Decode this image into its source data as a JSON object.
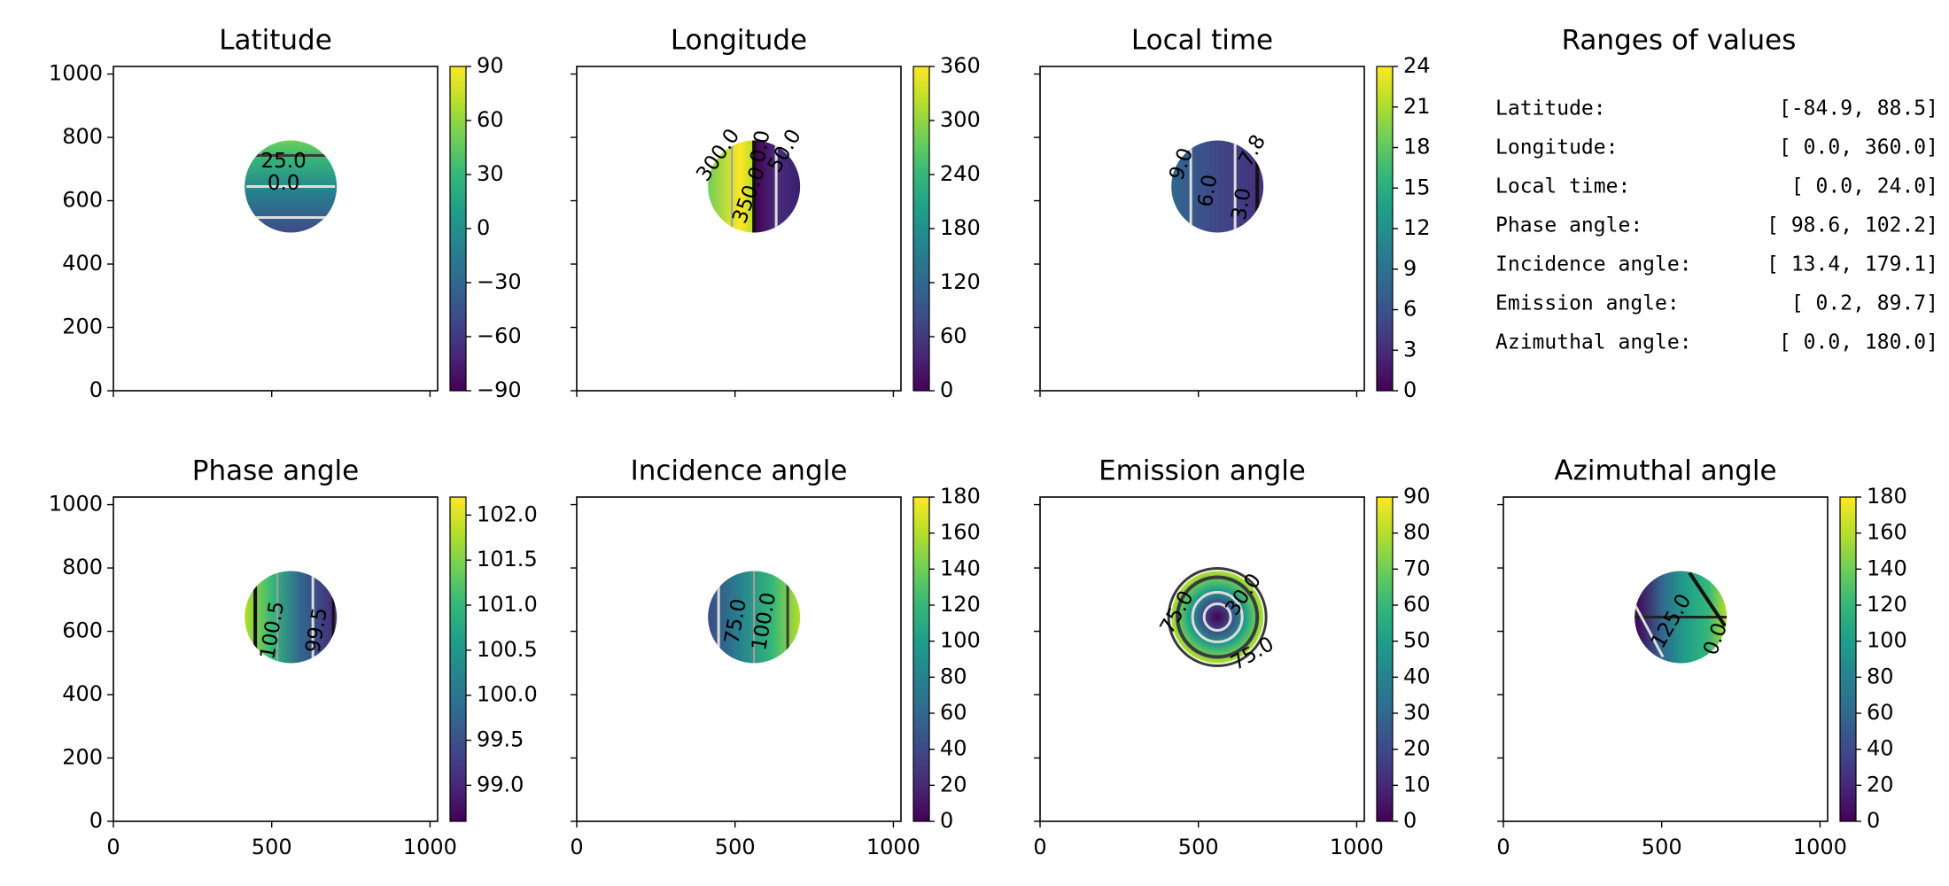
{
  "chart_data": [
    {
      "type": "heatmap",
      "title": "Latitude",
      "cbar_ticks": [
        90,
        60,
        30,
        0,
        -30,
        -60,
        -90
      ],
      "cbar_tick_labels": [
        "90",
        "60",
        "30",
        "0",
        "−30",
        "−60",
        "−90"
      ],
      "cbar_range": [
        -90,
        90
      ],
      "contour_labels": [
        "25.0",
        "0.0"
      ],
      "xlim": [
        0,
        1024
      ],
      "ylim": [
        0,
        1024
      ],
      "x_ticks": [
        0,
        500,
        1000
      ],
      "y_ticks": [
        0,
        200,
        400,
        600,
        800,
        1000
      ]
    },
    {
      "type": "heatmap",
      "title": "Longitude",
      "cbar_ticks": [
        360,
        300,
        240,
        180,
        120,
        60,
        0
      ],
      "cbar_tick_labels": [
        "360",
        "300",
        "240",
        "180",
        "120",
        "60",
        "0"
      ],
      "cbar_range": [
        0,
        360
      ],
      "contour_labels": [
        "300.0",
        "350.0",
        "0.0",
        "50.0"
      ],
      "xlim": [
        0,
        1024
      ],
      "ylim": [
        0,
        1024
      ]
    },
    {
      "type": "heatmap",
      "title": "Local time",
      "cbar_ticks": [
        24,
        21,
        18,
        15,
        12,
        9,
        6,
        3,
        0
      ],
      "cbar_tick_labels": [
        "24",
        "21",
        "18",
        "15",
        "12",
        "9",
        "6",
        "3",
        "0"
      ],
      "cbar_range": [
        0,
        24
      ],
      "contour_labels": [
        "9.0",
        "6.0",
        "3.0",
        "7.8"
      ],
      "xlim": [
        0,
        1024
      ],
      "ylim": [
        0,
        1024
      ]
    },
    {
      "type": "table",
      "title": "Ranges of values",
      "rows": [
        {
          "label": "Latitude:",
          "range": "[-84.9,  88.5]"
        },
        {
          "label": "Longitude:",
          "range": "[  0.0, 360.0]"
        },
        {
          "label": "Local time:",
          "range": "[  0.0,  24.0]"
        },
        {
          "label": "Phase angle:",
          "range": "[ 98.6, 102.2]"
        },
        {
          "label": "Incidence angle:",
          "range": "[ 13.4, 179.1]"
        },
        {
          "label": "Emission angle:",
          "range": "[  0.2,  89.7]"
        },
        {
          "label": "Azimuthal angle:",
          "range": "[  0.0, 180.0]"
        }
      ]
    },
    {
      "type": "heatmap",
      "title": "Phase angle",
      "cbar_ticks": [
        102.0,
        101.5,
        101.0,
        100.5,
        100.0,
        99.5,
        99.0
      ],
      "cbar_tick_labels": [
        "102.0",
        "101.5",
        "101.0",
        "100.5",
        "100.0",
        "99.5",
        "99.0"
      ],
      "cbar_range": [
        98.6,
        102.2
      ],
      "contour_labels": [
        "100.5",
        "99.5"
      ],
      "xlim": [
        0,
        1024
      ],
      "ylim": [
        0,
        1024
      ]
    },
    {
      "type": "heatmap",
      "title": "Incidence angle",
      "cbar_ticks": [
        180,
        160,
        140,
        120,
        100,
        80,
        60,
        40,
        20,
        0
      ],
      "cbar_tick_labels": [
        "180",
        "160",
        "140",
        "120",
        "100",
        "80",
        "60",
        "40",
        "20",
        "0"
      ],
      "cbar_range": [
        0,
        180
      ],
      "contour_labels": [
        "75.0",
        "100.0"
      ],
      "xlim": [
        0,
        1024
      ],
      "ylim": [
        0,
        1024
      ]
    },
    {
      "type": "heatmap",
      "title": "Emission angle",
      "cbar_ticks": [
        90,
        80,
        70,
        60,
        50,
        40,
        30,
        20,
        10,
        0
      ],
      "cbar_tick_labels": [
        "90",
        "80",
        "70",
        "60",
        "50",
        "40",
        "30",
        "20",
        "10",
        "0"
      ],
      "cbar_range": [
        0,
        90
      ],
      "contour_labels": [
        "75.0",
        "30.0",
        "75.0"
      ],
      "xlim": [
        0,
        1024
      ],
      "ylim": [
        0,
        1024
      ]
    },
    {
      "type": "heatmap",
      "title": "Azimuthal angle",
      "cbar_ticks": [
        180,
        160,
        140,
        120,
        100,
        80,
        60,
        40,
        20,
        0
      ],
      "cbar_tick_labels": [
        "180",
        "160",
        "140",
        "120",
        "100",
        "80",
        "60",
        "40",
        "20",
        "0"
      ],
      "cbar_range": [
        0,
        180
      ],
      "contour_labels": [
        "125.0",
        "0.0"
      ],
      "xlim": [
        0,
        1024
      ],
      "ylim": [
        0,
        1024
      ]
    }
  ],
  "x_tick_labels": [
    "0",
    "500",
    "1000"
  ],
  "y_tick_labels": [
    "0",
    "200",
    "400",
    "600",
    "800",
    "1000"
  ],
  "colors": {
    "colormap": [
      "#440154",
      "#482878",
      "#3e4a89",
      "#31688e",
      "#26828e",
      "#1f9e89",
      "#35b779",
      "#6ece58",
      "#b5de2b",
      "#fde725"
    ],
    "contour_dark": "#3a3a3a",
    "contour_light": "#dddddd",
    "contour_grey": "#a0a0a0"
  }
}
